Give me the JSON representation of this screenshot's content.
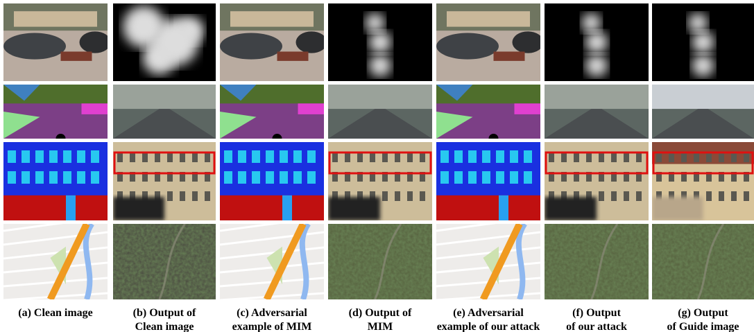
{
  "captions": [
    [
      "(a) Clean image"
    ],
    [
      "(b) Output of",
      "Clean image"
    ],
    [
      "(c) Adversarial",
      "example of MIM"
    ],
    [
      "(d) Output of",
      "MIM"
    ],
    [
      "(e) Adversarial",
      "example of our attack"
    ],
    [
      "(f) Output",
      "of our attack"
    ],
    [
      "(g) Output",
      "of Guide image"
    ]
  ]
}
